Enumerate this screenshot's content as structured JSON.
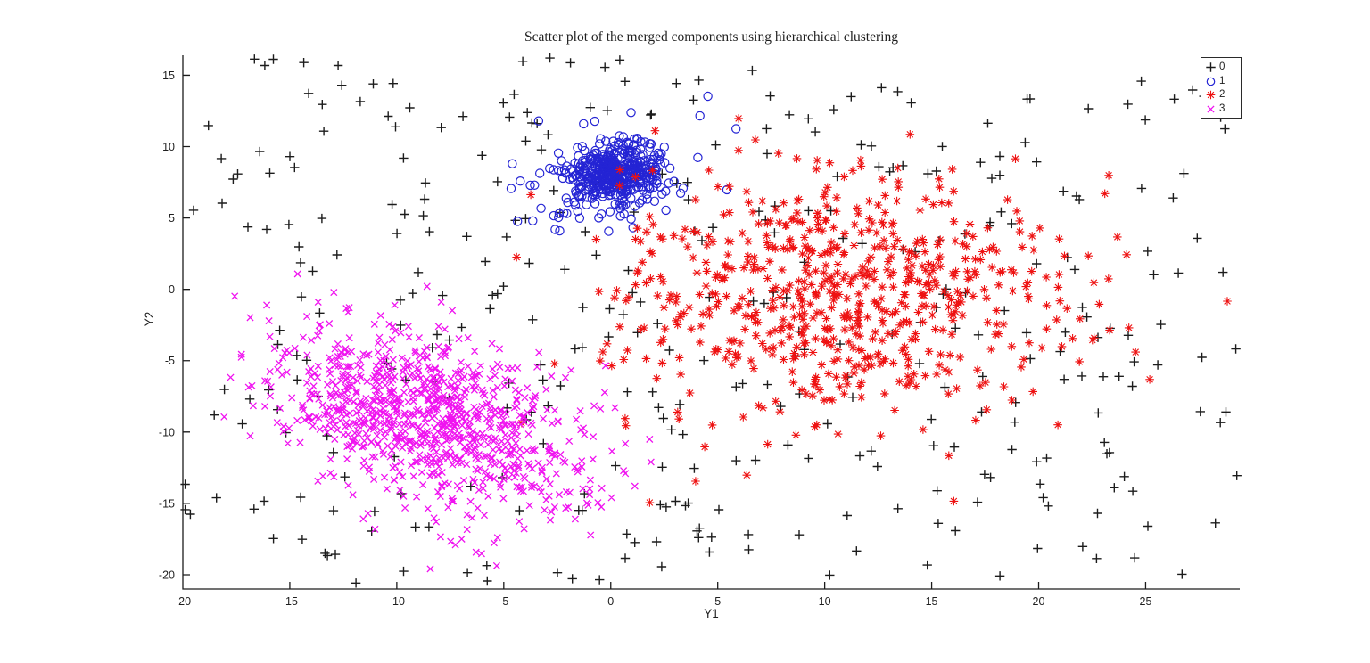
{
  "chart_data": {
    "type": "scatter",
    "title": "Scatter plot of the merged components using hierarchical clustering",
    "xlabel": "Y1",
    "ylabel": "Y2",
    "xlim": [
      -20,
      29.4
    ],
    "ylim": [
      -21,
      16.4
    ],
    "x_ticks": [
      -20,
      -15,
      -10,
      -5,
      0,
      5,
      10,
      15,
      20,
      25
    ],
    "y_ticks": [
      -20,
      -15,
      -10,
      -5,
      0,
      5,
      10,
      15
    ],
    "grid": false,
    "axis_color": "#1c1c1c",
    "tick_label_color": "#1f1f1f",
    "legend": {
      "position": "top-right",
      "border": true
    },
    "seed": 42,
    "series": [
      {
        "label": "0",
        "marker": "plus",
        "color": "#1c1c1c",
        "stroke_width": 1.4,
        "count": 380,
        "distribution": {
          "type": "uniform",
          "x_range": [
            -19.9,
            29.3
          ],
          "y_range": [
            -20.6,
            16.3
          ]
        }
      },
      {
        "label": "1",
        "marker": "circle",
        "color": "#2424d4",
        "stroke_width": 1.2,
        "count": 490,
        "distribution": {
          "type": "gaussian-mixture",
          "components": [
            {
              "cx": 0.2,
              "cy": 8.1,
              "sx": 1.0,
              "sy": 0.95,
              "rho": 0.1,
              "count": 370
            },
            {
              "cx": -0.1,
              "cy": 7.8,
              "sx": 2.2,
              "sy": 2.0,
              "rho": 0.15,
              "count": 120
            }
          ]
        }
      },
      {
        "label": "2",
        "marker": "asterisk",
        "color": "#ee1111",
        "stroke_width": 1.1,
        "count": 680,
        "distribution": {
          "type": "gaussian-mixture",
          "components": [
            {
              "cx": 10.8,
              "cy": -0.2,
              "sx": 5.0,
              "sy": 4.2,
              "rho": 0.05,
              "count": 680
            }
          ]
        }
      },
      {
        "label": "3",
        "marker": "cross",
        "color": "#f012f0",
        "stroke_width": 1.3,
        "count": 950,
        "distribution": {
          "type": "gaussian-mixture",
          "components": [
            {
              "cx": -8.6,
              "cy": -9.0,
              "sx": 3.6,
              "sy": 3.2,
              "rho": -0.4,
              "count": 950
            }
          ]
        }
      }
    ]
  }
}
